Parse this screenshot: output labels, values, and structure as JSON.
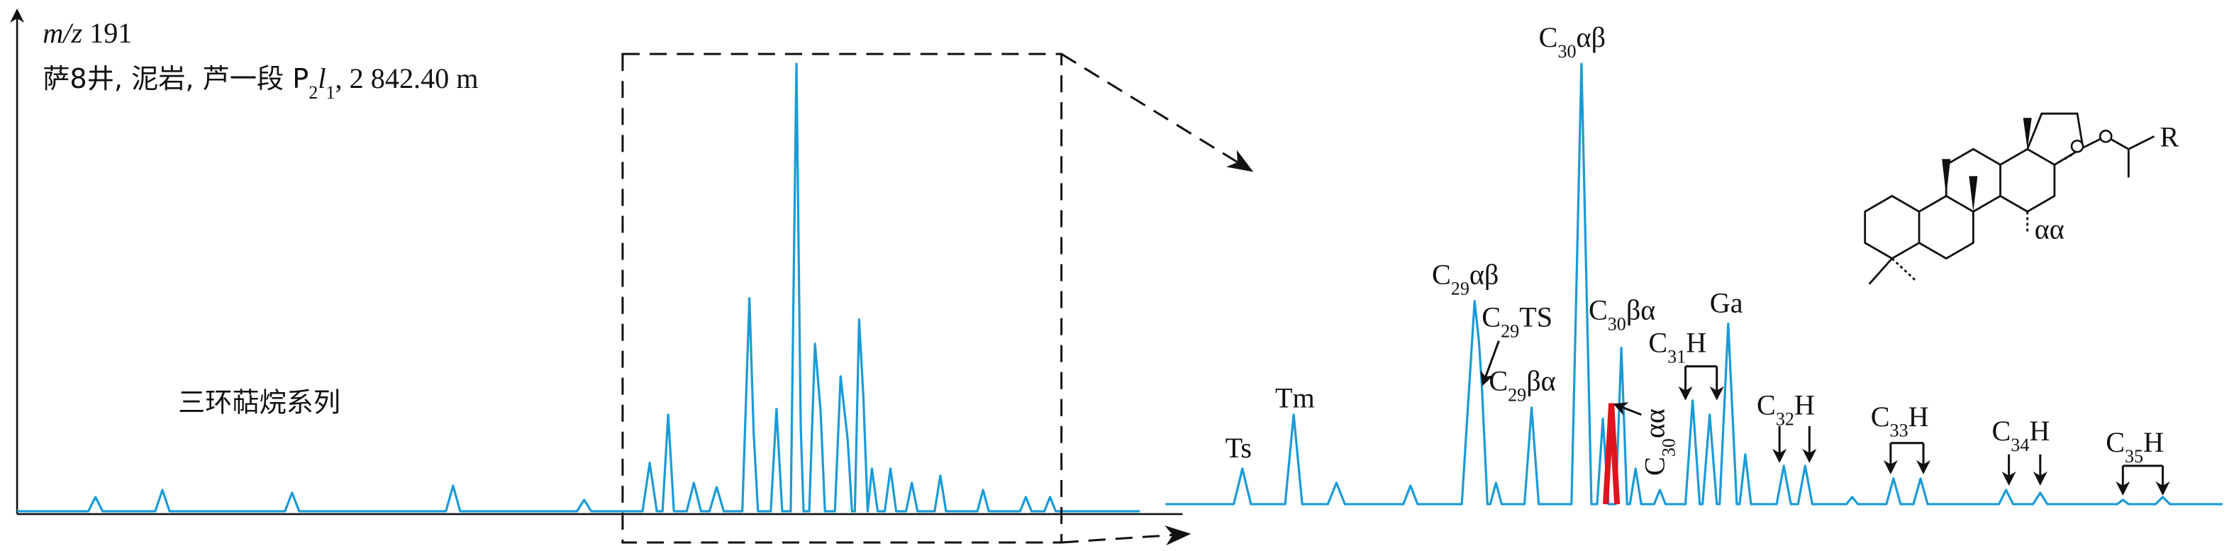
{
  "header": {
    "mz_label": "m/z",
    "mz_value": "191",
    "sample": "萨8井, 泥岩, 芦一段 P",
    "sample_sub1": "2",
    "sample_l": "l",
    "sample_sub2": "1",
    "sample_depth": ", 2 842.40 m"
  },
  "series_label": "三环萜烷系列",
  "peaks": [
    {
      "base": "Ts"
    },
    {
      "base": "Tm"
    },
    {
      "base": "C",
      "sub": "29",
      "suffix": "αβ"
    },
    {
      "base": "C",
      "sub": "29",
      "suffix": "TS"
    },
    {
      "base": "C",
      "sub": "29",
      "suffix": "βα"
    },
    {
      "base": "C",
      "sub": "30",
      "suffix": "αβ"
    },
    {
      "base": "C",
      "sub": "30",
      "suffix": "βα"
    },
    {
      "base": "C",
      "sub": "30",
      "suffix": "αα"
    },
    {
      "base": "C",
      "sub": "31",
      "suffix": "H"
    },
    {
      "base": "Ga"
    },
    {
      "base": "C",
      "sub": "32",
      "suffix": "H"
    },
    {
      "base": "C",
      "sub": "33",
      "suffix": "H"
    },
    {
      "base": "C",
      "sub": "34",
      "suffix": "H"
    },
    {
      "base": "C",
      "sub": "35",
      "suffix": "H"
    }
  ],
  "structure": {
    "label": "αα",
    "group": "R"
  }
}
